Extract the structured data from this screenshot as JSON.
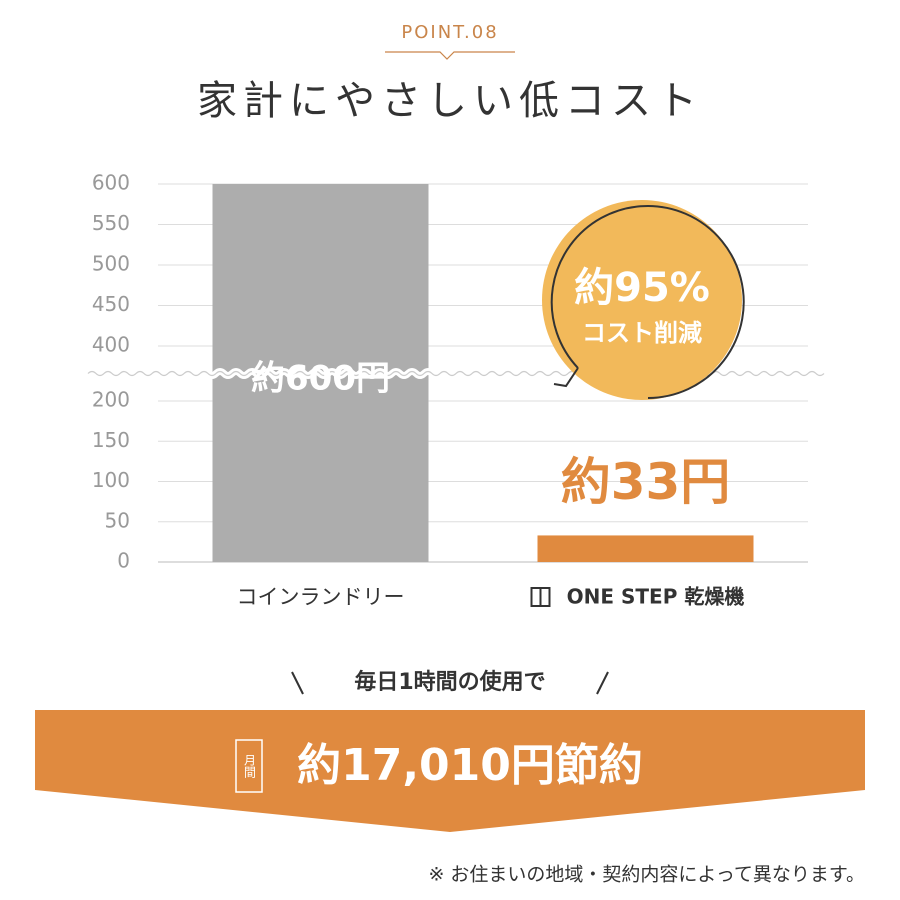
{
  "chart_data": {
    "type": "bar",
    "title": "家計にやさしい低コスト",
    "categories": [
      "コインランドリー",
      "ONE STEP 乾燥機"
    ],
    "values": [
      600,
      33
    ],
    "value_labels": [
      "約600円",
      "約33円"
    ],
    "colors": [
      "#adadad",
      "#e08a3f"
    ],
    "ylim": [
      0,
      600
    ],
    "axis_break": [
      200,
      400
    ],
    "yticks": [
      0,
      50,
      100,
      150,
      200,
      400,
      450,
      500,
      550,
      600
    ],
    "grid": true,
    "annotations": {
      "reduction": "約95%",
      "reduction_label": "コスト削減"
    }
  },
  "page": {
    "point": "POINT.08",
    "condition": "毎日1時間の使用で",
    "period": "月間",
    "saving": "約17,010円節約",
    "footnote": "※ お住まいの地域・契約内容によって異なります。"
  }
}
